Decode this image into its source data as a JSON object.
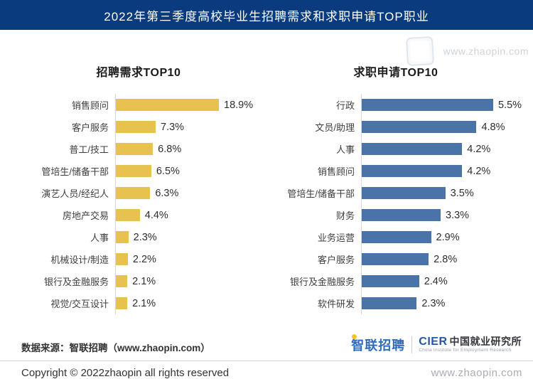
{
  "banner": {
    "title": "2022年第三季度高校毕业生招聘需求和求职申请TOP职业",
    "bg_color": "#0A3B7E"
  },
  "watermarks": {
    "top_right": "www.zhaopin.com",
    "bottom_right": "www.zhaopin.com",
    "stamp_icon": "seal-stamp"
  },
  "chart_data": [
    {
      "type": "bar",
      "orientation": "horizontal",
      "title": "招聘需求TOP10",
      "unit": "%",
      "bar_color": "#E8C24E",
      "grid": false,
      "value_labels": true,
      "xlim": [
        0,
        20
      ],
      "categories": [
        "销售顾问",
        "客户服务",
        "普工/技工",
        "管培生/储备干部",
        "演艺人员/经纪人",
        "房地产交易",
        "人事",
        "机械设计/制造",
        "银行及金融服务",
        "视觉/交互设计"
      ],
      "values": [
        18.9,
        7.3,
        6.8,
        6.5,
        6.3,
        4.4,
        2.3,
        2.2,
        2.1,
        2.1
      ],
      "labels": [
        "18.9%",
        "7.3%",
        "6.8%",
        "6.5%",
        "6.3%",
        "4.4%",
        "2.3%",
        "2.2%",
        "2.1%",
        "2.1%"
      ]
    },
    {
      "type": "bar",
      "orientation": "horizontal",
      "title": "求职申请TOP10",
      "unit": "%",
      "bar_color": "#4A74A8",
      "grid": false,
      "value_labels": true,
      "xlim": [
        0,
        6
      ],
      "categories": [
        "行政",
        "文员/助理",
        "人事",
        "销售顾问",
        "管培生/储备干部",
        "财务",
        "业务运营",
        "客户服务",
        "银行及金融服务",
        "软件研发"
      ],
      "values": [
        5.5,
        4.8,
        4.2,
        4.2,
        3.5,
        3.3,
        2.9,
        2.8,
        2.4,
        2.3
      ],
      "labels": [
        "5.5%",
        "4.8%",
        "4.2%",
        "4.2%",
        "3.5%",
        "3.3%",
        "2.9%",
        "2.8%",
        "2.4%",
        "2.3%"
      ]
    }
  ],
  "footer": {
    "source": "数据来源：智联招聘（www.zhaopin.com）",
    "copyright": "Copyright © 2022zhaopin all rights reserved"
  },
  "logo": {
    "zhaopin": "智联招聘",
    "cier": "CIER",
    "institute": "中国就业研究所",
    "institute_en": "China Institute for Employment Research"
  }
}
